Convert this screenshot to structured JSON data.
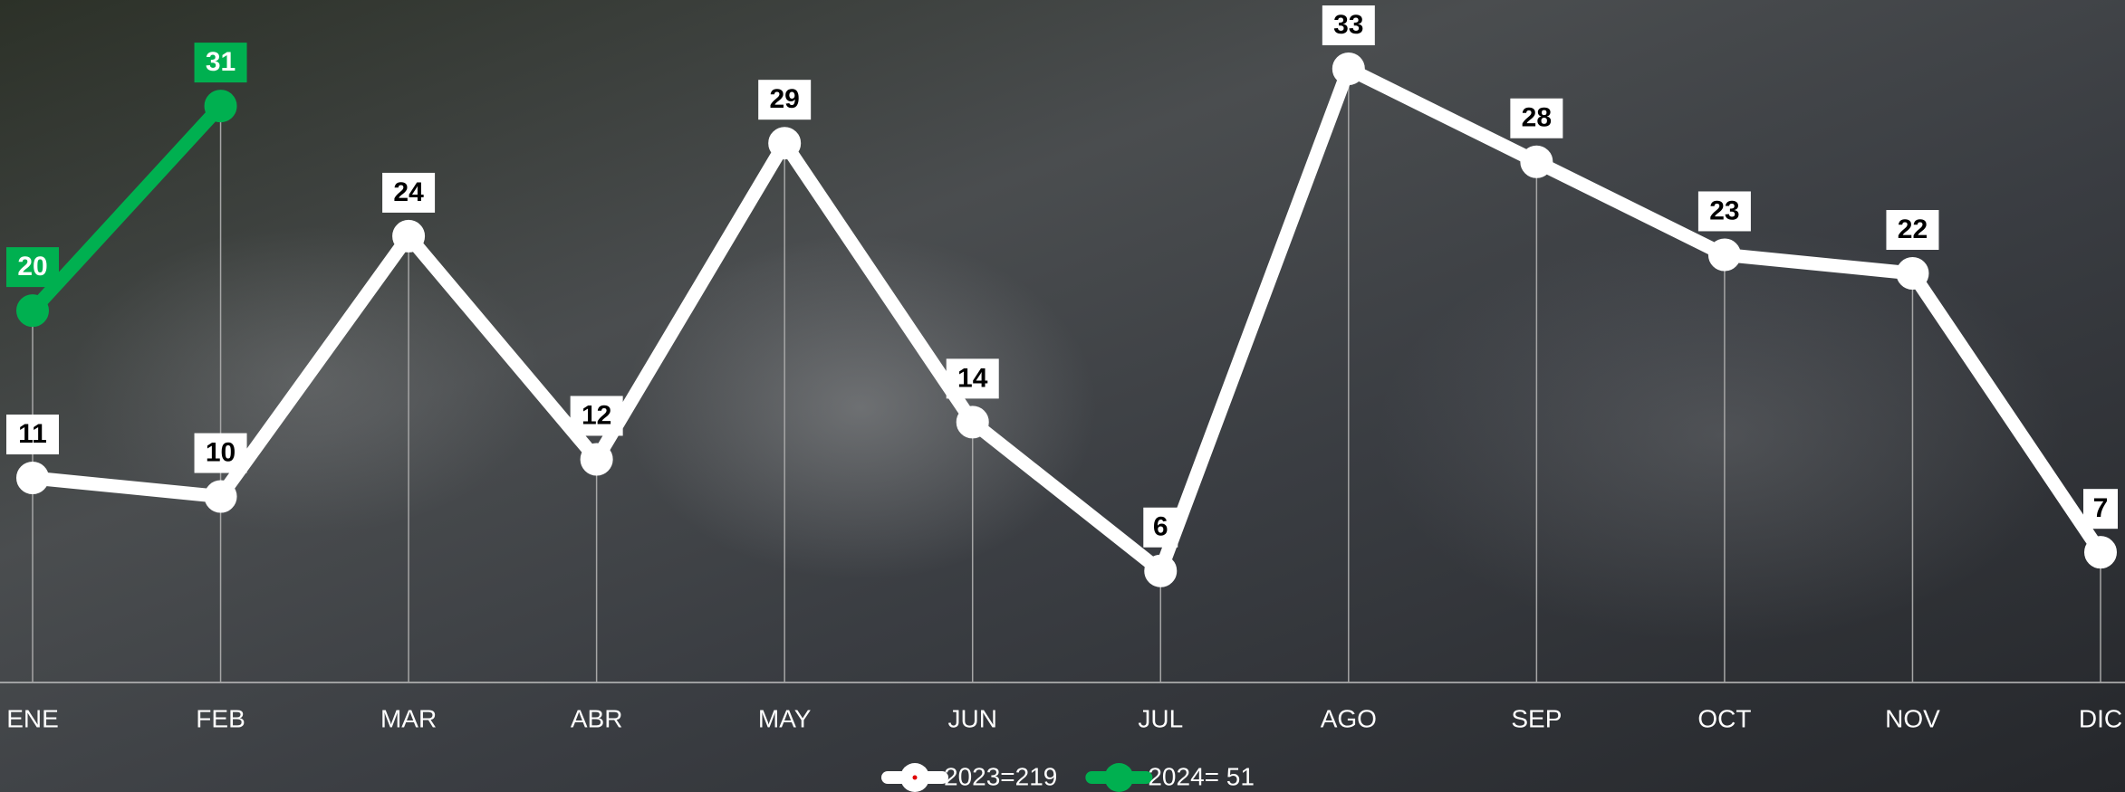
{
  "chart_data": {
    "type": "line",
    "categories": [
      "ENE",
      "FEB",
      "MAR",
      "ABR",
      "MAY",
      "JUN",
      "JUL",
      "AGO",
      "SEP",
      "OCT",
      "NOV",
      "DIC"
    ],
    "series": [
      {
        "name": "2023=219",
        "color": "#ffffff",
        "values": [
          11,
          10,
          24,
          12,
          29,
          14,
          6,
          33,
          28,
          23,
          22,
          7
        ]
      },
      {
        "name": "2024= 51",
        "color": "#00b050",
        "values": [
          20,
          31,
          null,
          null,
          null,
          null,
          null,
          null,
          null,
          null,
          null,
          null
        ]
      }
    ],
    "ylim": [
      0,
      36.7
    ],
    "legend": "bottom"
  }
}
